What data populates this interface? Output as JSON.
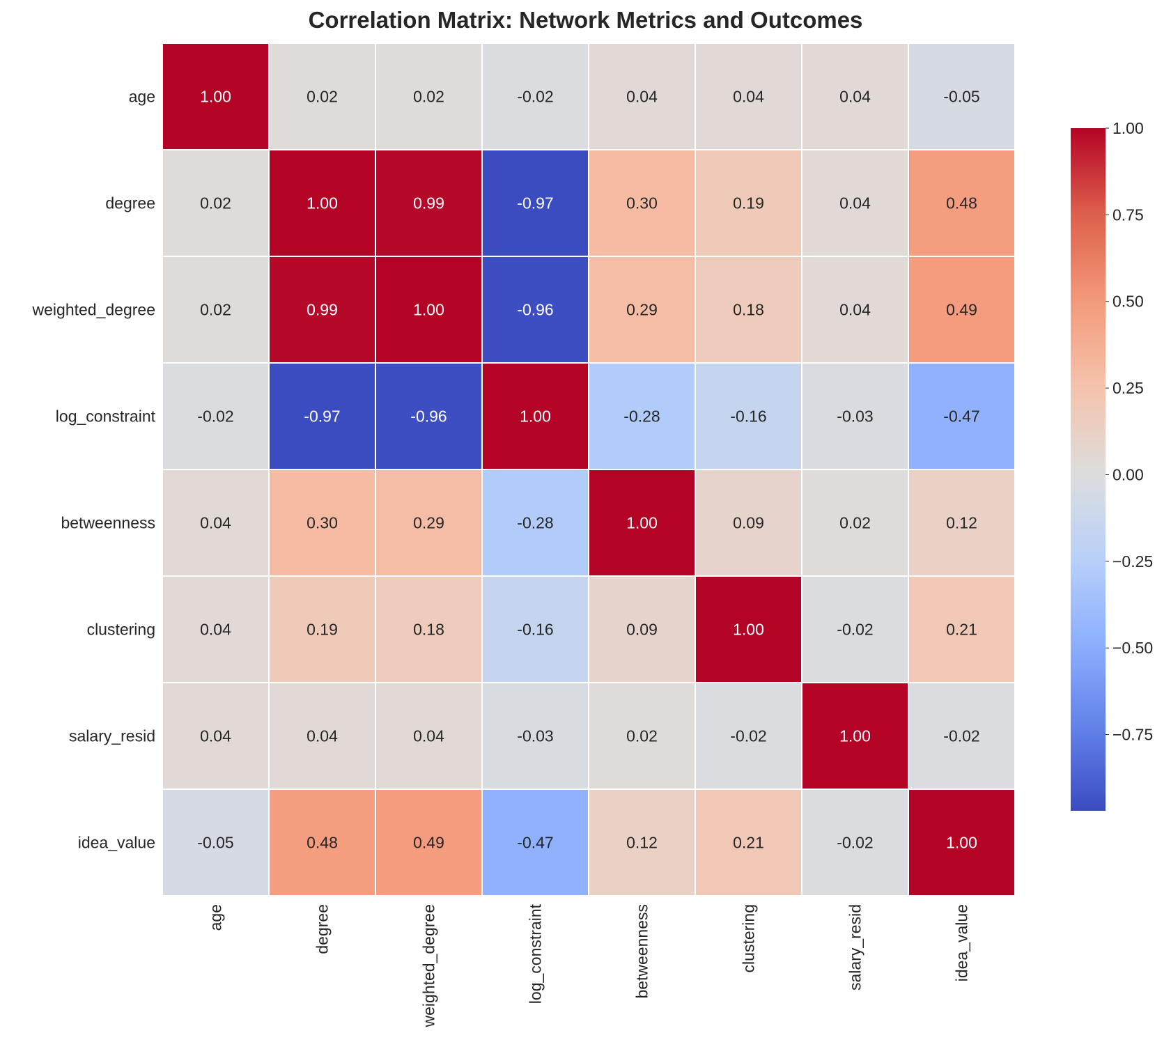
{
  "chart_data": {
    "type": "heatmap",
    "title": "Correlation Matrix: Network Metrics and Outcomes",
    "xlabel": "",
    "ylabel": "",
    "row_labels": [
      "age",
      "degree",
      "weighted_degree",
      "log_constraint",
      "betweenness",
      "clustering",
      "salary_resid",
      "idea_value"
    ],
    "col_labels": [
      "age",
      "degree",
      "weighted_degree",
      "log_constraint",
      "betweenness",
      "clustering",
      "salary_resid",
      "idea_value"
    ],
    "values": [
      [
        1.0,
        0.02,
        0.02,
        -0.02,
        0.04,
        0.04,
        0.04,
        -0.05
      ],
      [
        0.02,
        1.0,
        0.99,
        -0.97,
        0.3,
        0.19,
        0.04,
        0.48
      ],
      [
        0.02,
        0.99,
        1.0,
        -0.96,
        0.29,
        0.18,
        0.04,
        0.49
      ],
      [
        -0.02,
        -0.97,
        -0.96,
        1.0,
        -0.28,
        -0.16,
        -0.03,
        -0.47
      ],
      [
        0.04,
        0.3,
        0.29,
        -0.28,
        1.0,
        0.09,
        0.02,
        0.12
      ],
      [
        0.04,
        0.19,
        0.18,
        -0.16,
        0.09,
        1.0,
        -0.02,
        0.21
      ],
      [
        0.04,
        0.04,
        0.04,
        -0.03,
        0.02,
        -0.02,
        1.0,
        -0.02
      ],
      [
        -0.05,
        0.48,
        0.49,
        -0.47,
        0.12,
        0.21,
        -0.02,
        1.0
      ]
    ],
    "annotation_format": "0.00",
    "colormap": "coolwarm",
    "color_range": [
      -0.97,
      1.0
    ],
    "colorbar": {
      "ticks": [
        1.0,
        0.75,
        0.5,
        0.25,
        0.0,
        -0.25,
        -0.5,
        -0.75
      ],
      "tick_labels": [
        "1.00",
        "0.75",
        "0.50",
        "0.25",
        "0.00",
        "−0.25",
        "−0.50",
        "−0.75"
      ],
      "placement": "right"
    },
    "grid": false
  }
}
